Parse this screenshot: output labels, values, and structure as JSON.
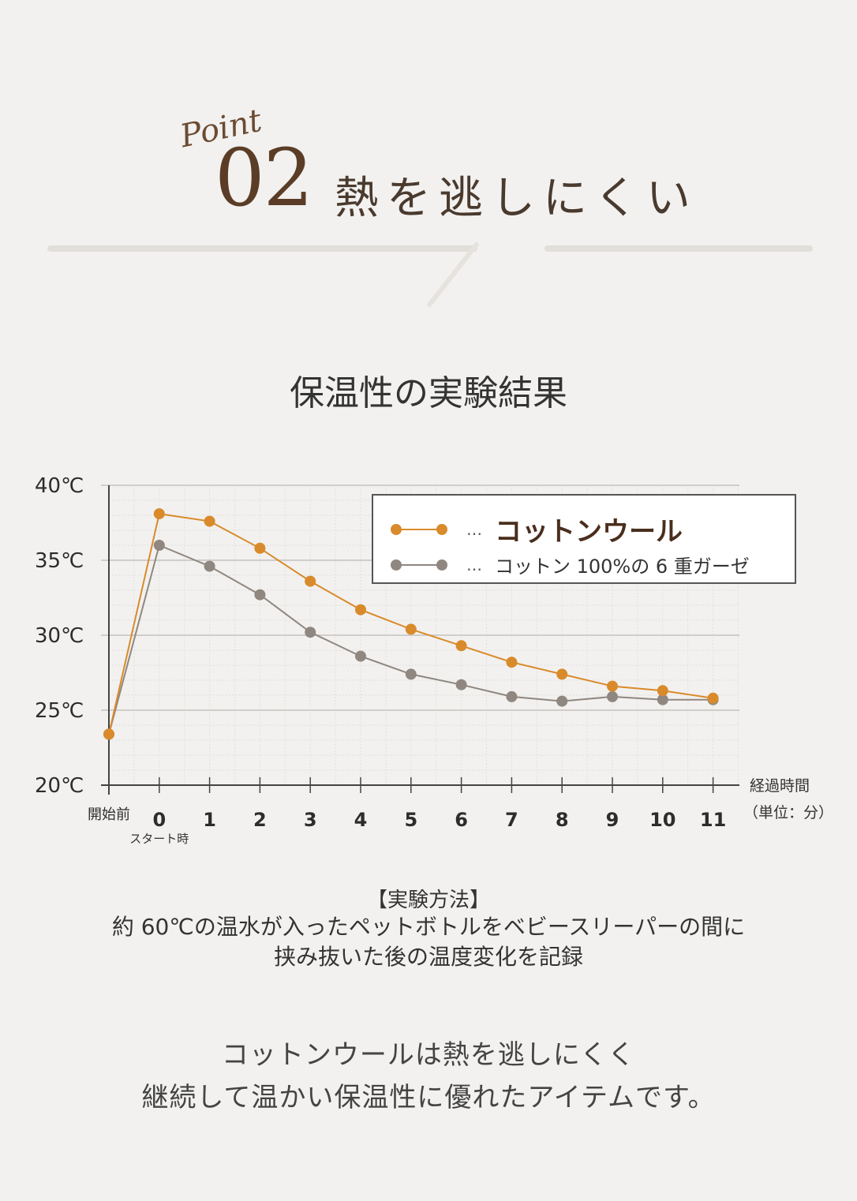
{
  "header": {
    "point_label": "Point",
    "point_number": "02",
    "headline": "熱を逃しにくい"
  },
  "chart_title": "保温性の実験結果",
  "chart_data": {
    "type": "line",
    "categories": [
      "開始前",
      "0",
      "1",
      "2",
      "3",
      "4",
      "5",
      "6",
      "7",
      "8",
      "9",
      "10",
      "11"
    ],
    "category_sublabels": {
      "0": "スタート時"
    },
    "series": [
      {
        "name": "コットンウール",
        "color": "#d98a2b",
        "values": [
          23.4,
          38.1,
          37.6,
          35.8,
          33.6,
          31.7,
          30.4,
          29.3,
          28.2,
          27.4,
          26.6,
          26.3,
          25.8
        ]
      },
      {
        "name": "コットン 100%の 6 重ガーゼ",
        "color": "#8f8780",
        "values": [
          23.4,
          36.0,
          34.6,
          32.7,
          30.2,
          28.6,
          27.4,
          26.7,
          25.9,
          25.6,
          25.9,
          25.7,
          25.7
        ]
      }
    ],
    "y_ticks": [
      "40℃",
      "35℃",
      "30℃",
      "25℃",
      "20℃"
    ],
    "ylim": [
      20,
      40
    ],
    "xlabel": "経過時間",
    "xlabel_unit": "（単位：分）",
    "legend_sep": "…",
    "legend_position": "top-right",
    "grid": true
  },
  "method": {
    "heading": "【実験方法】",
    "line1": "約 60℃の温水が入ったペットボトルをベビースリーパーの間に",
    "line2": "挟み抜いた後の温度変化を記録"
  },
  "summary": {
    "line1": "コットンウールは熱を逃しにくく",
    "line2": "継続して温かい保温性に優れたアイテムです。"
  }
}
